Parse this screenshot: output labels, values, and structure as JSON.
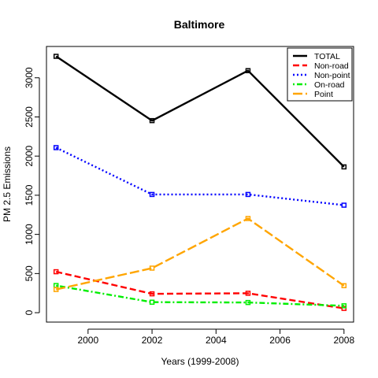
{
  "chart_data": {
    "type": "line",
    "title": "Baltimore",
    "xlabel": "Years (1999-2008)",
    "ylabel": "PM 2.5 Emissions",
    "x": [
      1999,
      2002,
      2005,
      2008
    ],
    "xlim": [
      1998.7,
      2008.3
    ],
    "ylim": [
      -120,
      3400
    ],
    "xticks": [
      2000,
      2002,
      2004,
      2006,
      2008
    ],
    "yticks": [
      0,
      500,
      1000,
      1500,
      2000,
      2500,
      3000
    ],
    "grid": false,
    "legend_position": "top-right",
    "series": [
      {
        "name": "TOTAL",
        "values": [
          3274,
          2453,
          3091,
          1862
        ],
        "color": "#000000",
        "dash": "solid"
      },
      {
        "name": "Non-road",
        "values": [
          523,
          241,
          248,
          55
        ],
        "color": "#ff0000",
        "dash": "dashed"
      },
      {
        "name": "Non-point",
        "values": [
          2108,
          1510,
          1510,
          1373
        ],
        "color": "#0000ff",
        "dash": "dotted"
      },
      {
        "name": "On-road",
        "values": [
          347,
          134,
          130,
          88
        ],
        "color": "#00ee00",
        "dash": "dotdash"
      },
      {
        "name": "Point",
        "values": [
          296,
          569,
          1203,
          345
        ],
        "color": "#ffa500",
        "dash": "longdash"
      }
    ]
  }
}
